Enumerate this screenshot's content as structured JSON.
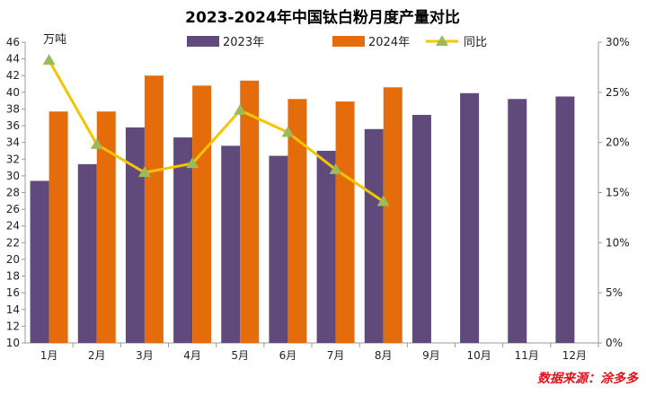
{
  "chart_data": {
    "type": "bar",
    "title": "2023-2024年中国钛白粉月度产量对比",
    "y_unit_label": "万吨",
    "categories": [
      "1月",
      "2月",
      "3月",
      "4月",
      "5月",
      "6月",
      "7月",
      "8月",
      "9月",
      "10月",
      "11月",
      "12月"
    ],
    "series": [
      {
        "name": "2023年",
        "type": "bar",
        "axis": "left",
        "color": "#604a7b",
        "values": [
          29.4,
          31.4,
          35.8,
          34.6,
          33.6,
          32.4,
          33.0,
          35.6,
          37.3,
          39.9,
          39.2,
          39.5
        ]
      },
      {
        "name": "2024年",
        "type": "bar",
        "axis": "left",
        "color": "#e46c0a",
        "values": [
          37.7,
          37.7,
          42.0,
          40.8,
          41.4,
          39.2,
          38.9,
          40.6,
          null,
          null,
          null,
          null
        ]
      },
      {
        "name": "同比",
        "type": "line",
        "axis": "right",
        "color": "#f5c400",
        "marker_color": "#9bbb59",
        "values": [
          28.2,
          19.8,
          17.0,
          17.9,
          23.2,
          21.0,
          17.3,
          14.1,
          null,
          null,
          null,
          null
        ]
      }
    ],
    "ylim_left": [
      10,
      46
    ],
    "yticks_left": [
      10,
      12,
      14,
      16,
      18,
      20,
      22,
      24,
      26,
      28,
      30,
      32,
      34,
      36,
      38,
      40,
      42,
      44,
      46
    ],
    "ylim_right": [
      0,
      30
    ],
    "yticks_right_labels": [
      "0%",
      "5%",
      "10%",
      "15%",
      "20%",
      "25%",
      "30%"
    ],
    "legend_position": "top",
    "grid": false
  },
  "source_text": "数据来源：涂多多"
}
